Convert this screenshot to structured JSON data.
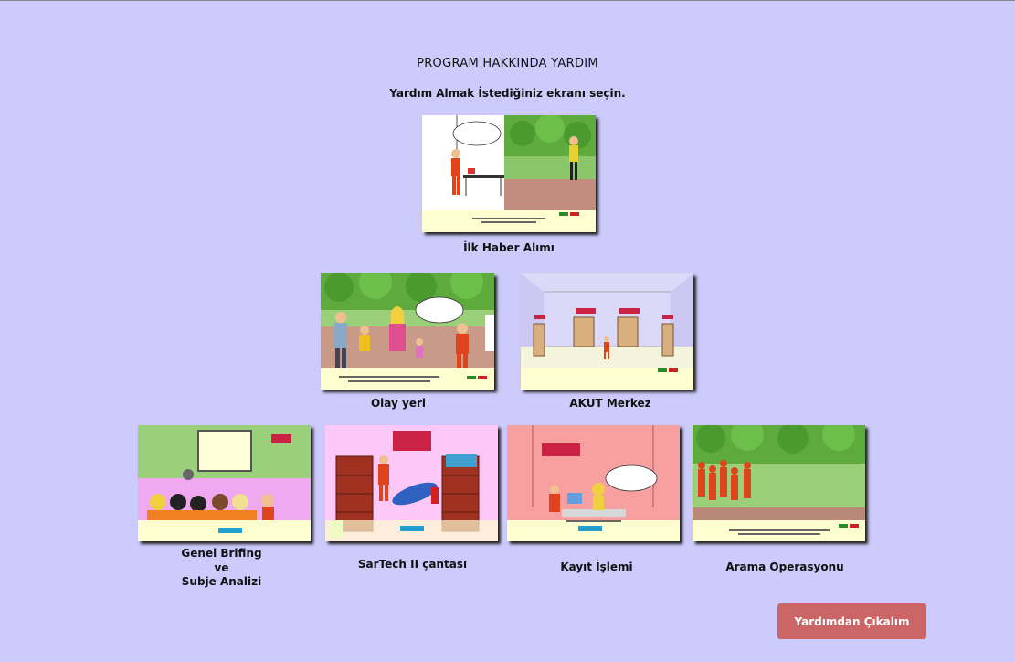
{
  "page": {
    "title": "PROGRAM HAKKINDA YARDIM",
    "subtitle": "Yardım Almak İstediğiniz ekranı seçin."
  },
  "screens": {
    "ilk_haber": {
      "label": "İlk Haber Alımı"
    },
    "olay_yeri": {
      "label": "Olay yeri"
    },
    "akut_merkez": {
      "label": "AKUT Merkez"
    },
    "genel_brifing": {
      "label_line1": "Genel Brifing",
      "label_line2": "ve",
      "label_line3": "Subje Analizi"
    },
    "sartech": {
      "label": "SarTech II çantası"
    },
    "kayit": {
      "label": "Kayıt İşlemi"
    },
    "arama": {
      "label": "Arama Operasyonu"
    }
  },
  "exit_button": {
    "label": "Yardımdan Çıkalım"
  },
  "colors": {
    "background": "#cdcbfb",
    "exit_button": "#cc6666",
    "rescuer_orange": "#e0441c",
    "thumb_footer": "#fefed0"
  }
}
